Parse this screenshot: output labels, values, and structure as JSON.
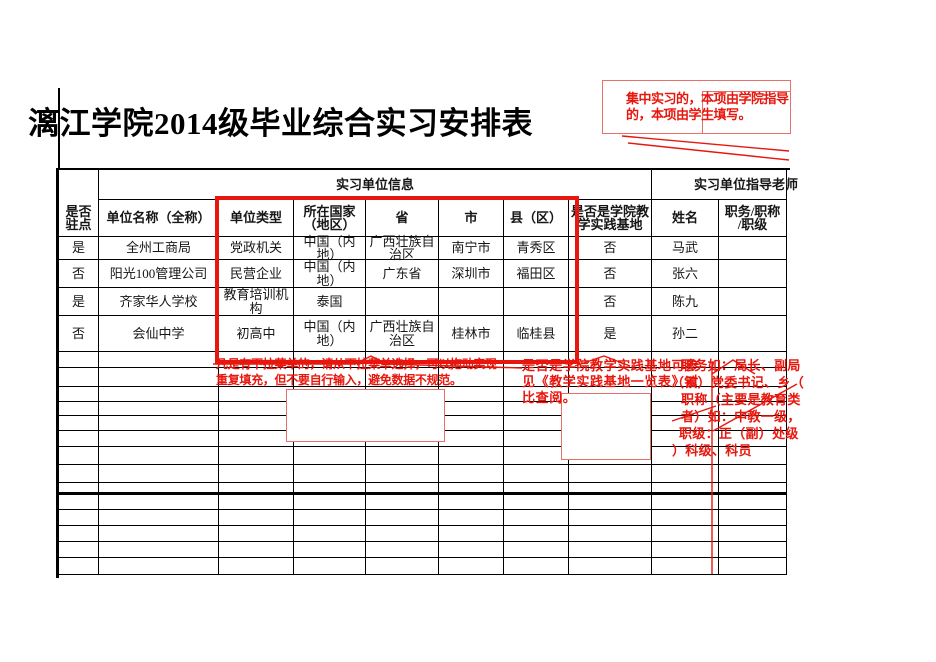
{
  "title": "漓江学院2014级毕业综合实习安排表",
  "colors": {
    "grid": "#000000",
    "annotation_red": "#e8170e",
    "highlight_box_red": "#e8170e"
  },
  "table": {
    "group_headers": [
      {
        "label": "实习单位信息"
      },
      {
        "label": "实习单位指导老师"
      }
    ],
    "columns": [
      "是否\n驻点",
      "单位名称（全称）",
      "单位类型",
      "所在国家\n（地区）",
      "省",
      "市",
      "县（区）",
      "是否是学院教\n学实践基地",
      "姓名",
      "职务/职称\n/职级"
    ],
    "rows": [
      [
        "是",
        "全州工商局",
        "党政机关",
        "中国（内\n地）",
        "广西壮族自\n治区",
        "南宁市",
        "青秀区",
        "否",
        "马武",
        ""
      ],
      [
        "否",
        "阳光100管理公司",
        "民营企业",
        "中国（内\n地）",
        "广东省",
        "深圳市",
        "福田区",
        "否",
        "张六",
        ""
      ],
      [
        "是",
        "齐家华人学校",
        "教育培训机\n构",
        "泰国",
        "",
        "",
        "",
        "否",
        "陈九",
        ""
      ],
      [
        "否",
        "会仙中学",
        "初高中",
        "中国（内\n地）",
        "广西壮族自\n治区",
        "桂林市",
        "临桂县",
        "是",
        "孙二",
        ""
      ]
    ],
    "empty_row_count": 14
  },
  "annotations": {
    "top_right": {
      "lines": [
        "集中实习的，本项由学院指导",
        "的，本项由学生填写。"
      ]
    },
    "dropdown_note": {
      "lines": [
        "凡是有下拉菜单的，请从下拉菜单选择，可以拖动实现",
        "重复填充，但不要自行输入，避免数据不规范。"
      ]
    },
    "practice_base_note": {
      "lines": [
        "是否是学院教学实践基地可参",
        "见《教学实践基地一览表》对",
        "比查阅。"
      ]
    },
    "position_note": {
      "lines": [
        "职务如：局长、副局",
        "（镇）党委书记、乡（",
        "职称（主要是教育类",
        "者）如：中教一级，",
        "职级：正（副）处级",
        "）科级、科员"
      ]
    }
  }
}
